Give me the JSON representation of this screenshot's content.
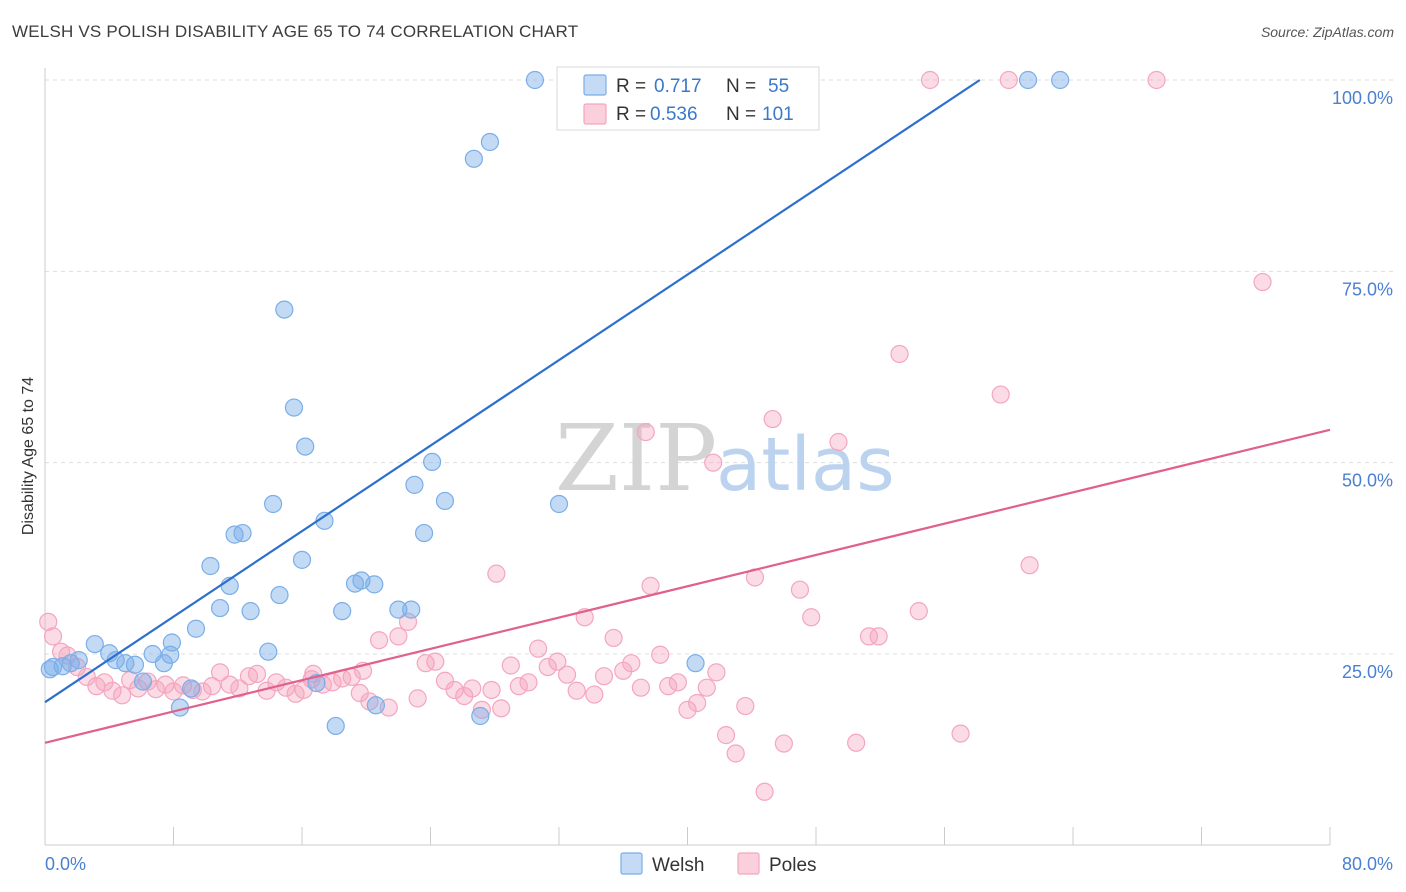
{
  "title": "WELSH VS POLISH DISABILITY AGE 65 TO 74 CORRELATION CHART",
  "source": "Source: ZipAtlas.com",
  "watermark": {
    "zip": "ZIP",
    "atlas": "atlas"
  },
  "colors": {
    "welsh": "#7aaee8",
    "welsh_line": "#2d6fce",
    "poles": "#f4a6bf",
    "poles_line": "#e0608e",
    "tick_text": "#4a7fd1",
    "grid": "#dddddd"
  },
  "legend": {
    "r_label": "R =",
    "n_label": "N =",
    "welsh_r": "0.717",
    "welsh_n": "55",
    "poles_r": "0.536",
    "poles_n": "101"
  },
  "chart_data": {
    "type": "scatter",
    "title": "WELSH VS POLISH DISABILITY AGE 65 TO 74 CORRELATION CHART",
    "xlabel": "",
    "ylabel": "Disability Age 65 to 74",
    "xlim": [
      0,
      80
    ],
    "ylim": [
      0,
      105
    ],
    "x_tick_labels": [
      "0.0%",
      "80.0%"
    ],
    "y_ticks": [
      25,
      50,
      75,
      100
    ],
    "y_tick_labels": [
      "25.0%",
      "50.0%",
      "75.0%",
      "100.0%"
    ],
    "grid": "horizontal dashed",
    "legend_position": "top-center",
    "series": [
      {
        "name": "Welsh",
        "color": "#7aaee8",
        "r": 0.717,
        "n": 55,
        "trendline": {
          "x": [
            0,
            58.2
          ],
          "y": [
            18.7,
            100
          ]
        },
        "points": [
          [
            0.3,
            23.0
          ],
          [
            0.5,
            23.3
          ],
          [
            1.1,
            23.4
          ],
          [
            1.6,
            23.8
          ],
          [
            2.1,
            24.2
          ],
          [
            3.1,
            26.3
          ],
          [
            4.0,
            25.1
          ],
          [
            4.4,
            24.2
          ],
          [
            5.0,
            23.8
          ],
          [
            5.6,
            23.6
          ],
          [
            6.1,
            21.4
          ],
          [
            6.7,
            25.0
          ],
          [
            7.4,
            23.8
          ],
          [
            7.9,
            26.5
          ],
          [
            8.4,
            18.0
          ],
          [
            9.4,
            28.3
          ],
          [
            10.3,
            36.5
          ],
          [
            10.9,
            31.0
          ],
          [
            11.5,
            33.9
          ],
          [
            12.3,
            40.8
          ],
          [
            14.2,
            44.6
          ],
          [
            14.9,
            70.0
          ],
          [
            15.5,
            57.2
          ],
          [
            16.2,
            52.1
          ],
          [
            17.4,
            42.4
          ],
          [
            18.1,
            15.6
          ],
          [
            18.5,
            30.6
          ],
          [
            19.3,
            34.2
          ],
          [
            19.7,
            34.6
          ],
          [
            20.5,
            34.1
          ],
          [
            22.0,
            30.8
          ],
          [
            23.0,
            47.1
          ],
          [
            23.6,
            40.8
          ],
          [
            24.1,
            50.1
          ],
          [
            24.9,
            45.0
          ],
          [
            16.0,
            37.3
          ],
          [
            11.8,
            40.6
          ],
          [
            12.8,
            30.6
          ],
          [
            13.9,
            25.3
          ],
          [
            9.1,
            20.5
          ],
          [
            16.9,
            21.2
          ],
          [
            22.8,
            30.8
          ],
          [
            14.6,
            32.7
          ],
          [
            20.6,
            18.3
          ],
          [
            7.8,
            24.9
          ],
          [
            27.1,
            16.9
          ],
          [
            32.0,
            44.6
          ],
          [
            40.5,
            23.8
          ],
          [
            26.7,
            89.7
          ],
          [
            27.7,
            91.9
          ],
          [
            30.5,
            100.0
          ],
          [
            38.0,
            100.0
          ],
          [
            45.0,
            100.0
          ],
          [
            61.2,
            100.0
          ],
          [
            63.2,
            100.0
          ]
        ]
      },
      {
        "name": "Poles",
        "color": "#f4a6bf",
        "r": 0.536,
        "n": 101,
        "trendline": {
          "x": [
            0,
            80
          ],
          "y": [
            13.4,
            54.3
          ]
        },
        "points": [
          [
            0.2,
            29.2
          ],
          [
            0.5,
            27.3
          ],
          [
            1.0,
            25.3
          ],
          [
            1.4,
            24.8
          ],
          [
            2.0,
            23.3
          ],
          [
            2.6,
            22.0
          ],
          [
            3.2,
            20.8
          ],
          [
            3.7,
            21.3
          ],
          [
            4.2,
            20.2
          ],
          [
            4.8,
            19.6
          ],
          [
            5.3,
            21.6
          ],
          [
            5.8,
            20.5
          ],
          [
            6.4,
            21.4
          ],
          [
            6.9,
            20.4
          ],
          [
            7.5,
            21.0
          ],
          [
            8.0,
            20.1
          ],
          [
            8.6,
            20.9
          ],
          [
            9.2,
            20.3
          ],
          [
            9.8,
            20.1
          ],
          [
            10.4,
            20.8
          ],
          [
            10.9,
            22.6
          ],
          [
            11.5,
            21.0
          ],
          [
            12.1,
            20.5
          ],
          [
            12.7,
            22.1
          ],
          [
            13.2,
            22.4
          ],
          [
            13.8,
            20.2
          ],
          [
            14.4,
            21.3
          ],
          [
            15.0,
            20.6
          ],
          [
            15.6,
            19.8
          ],
          [
            16.1,
            20.3
          ],
          [
            16.7,
            22.4
          ],
          [
            17.3,
            21.0
          ],
          [
            17.9,
            21.3
          ],
          [
            18.5,
            21.8
          ],
          [
            19.1,
            22.0
          ],
          [
            19.6,
            19.9
          ],
          [
            20.2,
            18.8
          ],
          [
            20.8,
            26.8
          ],
          [
            21.4,
            18.0
          ],
          [
            22.0,
            27.3
          ],
          [
            22.6,
            29.2
          ],
          [
            23.2,
            19.2
          ],
          [
            23.7,
            23.8
          ],
          [
            24.3,
            24.0
          ],
          [
            24.9,
            21.5
          ],
          [
            25.5,
            20.3
          ],
          [
            26.1,
            19.5
          ],
          [
            26.6,
            20.5
          ],
          [
            27.2,
            17.7
          ],
          [
            27.8,
            20.3
          ],
          [
            28.4,
            17.9
          ],
          [
            29.0,
            23.5
          ],
          [
            29.5,
            20.8
          ],
          [
            30.1,
            21.3
          ],
          [
            30.7,
            25.7
          ],
          [
            31.3,
            23.3
          ],
          [
            31.9,
            24.0
          ],
          [
            32.5,
            22.3
          ],
          [
            33.1,
            20.2
          ],
          [
            33.6,
            29.8
          ],
          [
            34.2,
            19.7
          ],
          [
            34.8,
            22.1
          ],
          [
            35.4,
            27.1
          ],
          [
            36.0,
            22.8
          ],
          [
            36.5,
            23.8
          ],
          [
            37.1,
            20.6
          ],
          [
            37.7,
            33.9
          ],
          [
            38.3,
            24.9
          ],
          [
            38.8,
            20.8
          ],
          [
            39.4,
            21.3
          ],
          [
            40.0,
            17.7
          ],
          [
            40.6,
            18.6
          ],
          [
            41.2,
            20.6
          ],
          [
            41.8,
            22.6
          ],
          [
            42.4,
            14.4
          ],
          [
            43.0,
            12.0
          ],
          [
            43.6,
            18.2
          ],
          [
            44.2,
            35.0
          ],
          [
            44.8,
            7.0
          ],
          [
            45.3,
            55.7
          ],
          [
            46.0,
            13.3
          ],
          [
            47.0,
            33.4
          ],
          [
            47.7,
            29.8
          ],
          [
            49.4,
            52.7
          ],
          [
            50.5,
            13.4
          ],
          [
            51.3,
            27.3
          ],
          [
            51.9,
            27.3
          ],
          [
            53.2,
            64.2
          ],
          [
            54.4,
            30.6
          ],
          [
            57.0,
            14.6
          ],
          [
            59.5,
            58.9
          ],
          [
            61.3,
            36.6
          ],
          [
            75.8,
            73.6
          ],
          [
            41.6,
            50.0
          ],
          [
            28.1,
            35.5
          ],
          [
            37.4,
            54.0
          ],
          [
            55.1,
            100.0
          ],
          [
            60.0,
            100.0
          ],
          [
            69.2,
            100.0
          ],
          [
            19.8,
            22.8
          ],
          [
            16.6,
            21.7
          ]
        ]
      }
    ]
  },
  "bottom_legend": {
    "welsh": "Welsh",
    "poles": "Poles"
  }
}
